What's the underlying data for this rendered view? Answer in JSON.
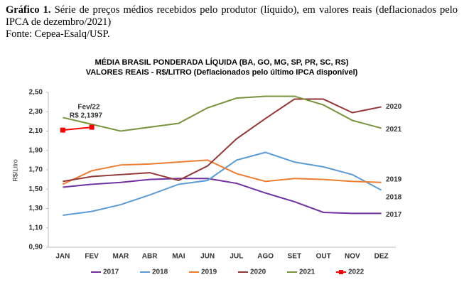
{
  "caption_label": "Gráfico 1.",
  "caption_text": "Série de preços médios recebidos pelo produtor (líquido), em valores reais (deflacionados pelo IPCA de dezembro/2021)",
  "source": "Fonte: Cepea-Esalq/USP.",
  "chart_data": {
    "type": "line",
    "title": "MÉDIA BRASIL PONDERADA LÍQUIDA (BA, GO, MG, SP, PR, SC, RS)",
    "subtitle": "VALORES REAIS - R$/LITRO (Deflacionados pelo último IPCA disponível)",
    "y_label": "R$/Litro",
    "categories": [
      "JAN",
      "FEV",
      "MAR",
      "ABR",
      "MAI",
      "JUN",
      "JUL",
      "AGO",
      "SET",
      "OUT",
      "NOV",
      "DEZ"
    ],
    "series": [
      {
        "name": "2017",
        "color": "#7030a0",
        "values": [
          1.52,
          1.55,
          1.57,
          1.6,
          1.61,
          1.61,
          1.56,
          1.46,
          1.37,
          1.26,
          1.25,
          1.25
        ]
      },
      {
        "name": "2018",
        "color": "#5b9bd5",
        "values": [
          1.23,
          1.27,
          1.34,
          1.44,
          1.55,
          1.59,
          1.8,
          1.88,
          1.78,
          1.73,
          1.65,
          1.49
        ]
      },
      {
        "name": "2019",
        "color": "#ed7d31",
        "values": [
          1.55,
          1.69,
          1.75,
          1.76,
          1.78,
          1.8,
          1.66,
          1.58,
          1.61,
          1.6,
          1.58,
          1.57
        ]
      },
      {
        "name": "2020",
        "color": "#943634",
        "values": [
          1.58,
          1.63,
          1.65,
          1.67,
          1.59,
          1.74,
          2.02,
          2.23,
          2.43,
          2.43,
          2.29,
          2.35
        ]
      },
      {
        "name": "2021",
        "color": "#77933c",
        "values": [
          2.24,
          2.17,
          2.1,
          2.14,
          2.18,
          2.34,
          2.44,
          2.46,
          2.46,
          2.37,
          2.21,
          2.13
        ]
      },
      {
        "name": "2022",
        "color": "#ff0000",
        "values": [
          2.11,
          2.1397,
          null,
          null,
          null,
          null,
          null,
          null,
          null,
          null,
          null,
          null
        ]
      }
    ],
    "annotation": [
      "Fev/22",
      "R$ 2,1397"
    ],
    "ylim": [
      0.9,
      2.5
    ],
    "yticks": [
      {
        "value": 0.9,
        "label": "0,90"
      },
      {
        "value": 1.1,
        "label": "1,10"
      },
      {
        "value": 1.3,
        "label": "1,30"
      },
      {
        "value": 1.5,
        "label": "1,50"
      },
      {
        "value": 1.7,
        "label": "1,70"
      },
      {
        "value": 1.9,
        "label": "1,90"
      },
      {
        "value": 2.1,
        "label": "2,10"
      },
      {
        "value": 2.3,
        "label": "2,30"
      },
      {
        "value": 2.5,
        "label": "2,50"
      }
    ],
    "grid": false,
    "legend": "bottom"
  }
}
